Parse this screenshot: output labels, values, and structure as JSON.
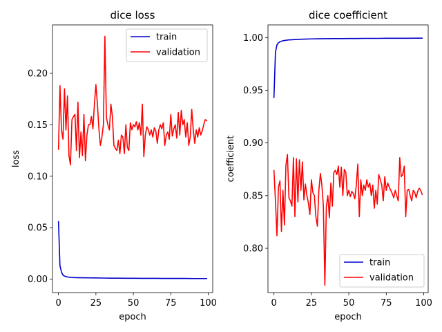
{
  "chart_data": [
    {
      "type": "line",
      "title": "dice loss",
      "xlabel": "epoch",
      "ylabel": "loss",
      "xlim": [
        -4,
        103
      ],
      "ylim": [
        -0.013,
        0.247
      ],
      "xticks": [
        0,
        25,
        50,
        75,
        100
      ],
      "yticks": [
        0.0,
        0.05,
        0.1,
        0.15,
        0.2
      ],
      "ytick_labels": [
        "0.00",
        "0.05",
        "0.10",
        "0.15",
        "0.20"
      ],
      "legend": "top-right",
      "grid": false,
      "series": [
        {
          "name": "train",
          "color": "#0000cc",
          "x": [
            0,
            1,
            2,
            3,
            4,
            5,
            6,
            7,
            8,
            9,
            10,
            15,
            20,
            25,
            30,
            35,
            40,
            45,
            50,
            55,
            60,
            65,
            70,
            75,
            80,
            85,
            90,
            95,
            99
          ],
          "y": [
            0.056,
            0.013,
            0.007,
            0.004,
            0.003,
            0.0025,
            0.0022,
            0.002,
            0.0018,
            0.0017,
            0.0016,
            0.0014,
            0.0013,
            0.0012,
            0.0011,
            0.001,
            0.001,
            0.0009,
            0.0009,
            0.0008,
            0.0008,
            0.0008,
            0.0007,
            0.0007,
            0.0007,
            0.0007,
            0.0006,
            0.0006,
            0.0006
          ]
        },
        {
          "name": "validation",
          "color": "#ff0000",
          "x": [
            0,
            1,
            2,
            3,
            4,
            5,
            6,
            7,
            8,
            9,
            10,
            11,
            12,
            13,
            14,
            15,
            16,
            17,
            18,
            19,
            20,
            21,
            22,
            23,
            24,
            25,
            26,
            27,
            28,
            29,
            30,
            31,
            32,
            33,
            34,
            35,
            36,
            37,
            38,
            39,
            40,
            41,
            42,
            43,
            44,
            45,
            46,
            47,
            48,
            49,
            50,
            51,
            52,
            53,
            54,
            55,
            56,
            57,
            58,
            59,
            60,
            61,
            62,
            63,
            64,
            65,
            66,
            67,
            68,
            69,
            70,
            71,
            72,
            73,
            74,
            75,
            76,
            77,
            78,
            79,
            80,
            81,
            82,
            83,
            84,
            85,
            86,
            87,
            88,
            89,
            90,
            91,
            92,
            93,
            94,
            95,
            96,
            97,
            98,
            99
          ],
          "y": [
            0.126,
            0.188,
            0.145,
            0.136,
            0.185,
            0.145,
            0.178,
            0.12,
            0.111,
            0.155,
            0.158,
            0.16,
            0.125,
            0.172,
            0.118,
            0.143,
            0.12,
            0.16,
            0.115,
            0.14,
            0.15,
            0.15,
            0.158,
            0.146,
            0.17,
            0.189,
            0.17,
            0.146,
            0.13,
            0.138,
            0.15,
            0.236,
            0.157,
            0.15,
            0.145,
            0.17,
            0.158,
            0.13,
            0.127,
            0.125,
            0.135,
            0.122,
            0.14,
            0.138,
            0.122,
            0.15,
            0.128,
            0.125,
            0.152,
            0.145,
            0.15,
            0.148,
            0.153,
            0.145,
            0.152,
            0.14,
            0.17,
            0.119,
            0.14,
            0.148,
            0.145,
            0.14,
            0.145,
            0.138,
            0.147,
            0.144,
            0.132,
            0.145,
            0.15,
            0.146,
            0.152,
            0.13,
            0.14,
            0.143,
            0.136,
            0.16,
            0.139,
            0.146,
            0.15,
            0.137,
            0.162,
            0.14,
            0.164,
            0.15,
            0.155,
            0.138,
            0.152,
            0.13,
            0.138,
            0.165,
            0.145,
            0.132,
            0.145,
            0.138,
            0.147,
            0.14,
            0.144,
            0.15,
            0.155,
            0.154
          ],
          "note_ignore": ""
        }
      ]
    },
    {
      "type": "line",
      "title": "dice coefficient",
      "xlabel": "epoch",
      "ylabel": "coefficient",
      "xlim": [
        -4,
        103
      ],
      "ylim": [
        0.758,
        1.012
      ],
      "xticks": [
        0,
        25,
        50,
        75,
        100
      ],
      "yticks": [
        0.8,
        0.85,
        0.9,
        0.95,
        1.0
      ],
      "ytick_labels": [
        "0.80",
        "0.85",
        "0.90",
        "0.95",
        "1.00"
      ],
      "legend": "bottom-right",
      "grid": false,
      "series": [
        {
          "name": "train",
          "color": "#0000cc",
          "x": [
            0,
            1,
            2,
            3,
            4,
            5,
            6,
            7,
            8,
            9,
            10,
            15,
            20,
            25,
            30,
            35,
            40,
            45,
            50,
            55,
            60,
            65,
            70,
            75,
            80,
            85,
            90,
            95,
            99
          ],
          "y": [
            0.943,
            0.986,
            0.993,
            0.995,
            0.996,
            0.9965,
            0.997,
            0.9972,
            0.9974,
            0.9976,
            0.9978,
            0.9982,
            0.9985,
            0.9987,
            0.9988,
            0.9989,
            0.999,
            0.999,
            0.9991,
            0.9991,
            0.9992,
            0.9992,
            0.9992,
            0.9993,
            0.9993,
            0.9993,
            0.9993,
            0.9994,
            0.9994
          ]
        },
        {
          "name": "validation",
          "color": "#ff0000",
          "x": [
            0,
            1,
            2,
            3,
            4,
            5,
            6,
            7,
            8,
            9,
            10,
            11,
            12,
            13,
            14,
            15,
            16,
            17,
            18,
            19,
            20,
            21,
            22,
            23,
            24,
            25,
            26,
            27,
            28,
            29,
            30,
            31,
            32,
            33,
            34,
            35,
            36,
            37,
            38,
            39,
            40,
            41,
            42,
            43,
            44,
            45,
            46,
            47,
            48,
            49,
            50,
            51,
            52,
            53,
            54,
            55,
            56,
            57,
            58,
            59,
            60,
            61,
            62,
            63,
            64,
            65,
            66,
            67,
            68,
            69,
            70,
            71,
            72,
            73,
            74,
            75,
            76,
            77,
            78,
            79,
            80,
            81,
            82,
            83,
            84,
            85,
            86,
            87,
            88,
            89,
            90,
            91,
            92,
            93,
            94,
            95,
            96,
            97,
            98,
            99
          ],
          "y": [
            0.874,
            0.845,
            0.812,
            0.858,
            0.864,
            0.816,
            0.855,
            0.822,
            0.879,
            0.889,
            0.848,
            0.845,
            0.84,
            0.886,
            0.83,
            0.885,
            0.844,
            0.884,
            0.855,
            0.882,
            0.846,
            0.861,
            0.85,
            0.843,
            0.832,
            0.865,
            0.853,
            0.85,
            0.83,
            0.821,
            0.855,
            0.871,
            0.86,
            0.84,
            0.765,
            0.84,
            0.85,
            0.829,
            0.862,
            0.84,
            0.872,
            0.874,
            0.87,
            0.878,
            0.858,
            0.877,
            0.85,
            0.875,
            0.872,
            0.85,
            0.855,
            0.849,
            0.854,
            0.852,
            0.847,
            0.86,
            0.88,
            0.83,
            0.865,
            0.85,
            0.86,
            0.855,
            0.865,
            0.858,
            0.862,
            0.85,
            0.86,
            0.838,
            0.855,
            0.842,
            0.87,
            0.865,
            0.86,
            0.845,
            0.868,
            0.855,
            0.862,
            0.858,
            0.855,
            0.852,
            0.848,
            0.855,
            0.85,
            0.845,
            0.886,
            0.868,
            0.87,
            0.878,
            0.83,
            0.855,
            0.856,
            0.85,
            0.845,
            0.855,
            0.853,
            0.848,
            0.854,
            0.857,
            0.855,
            0.851
          ],
          "note_ignore": ""
        }
      ]
    }
  ]
}
